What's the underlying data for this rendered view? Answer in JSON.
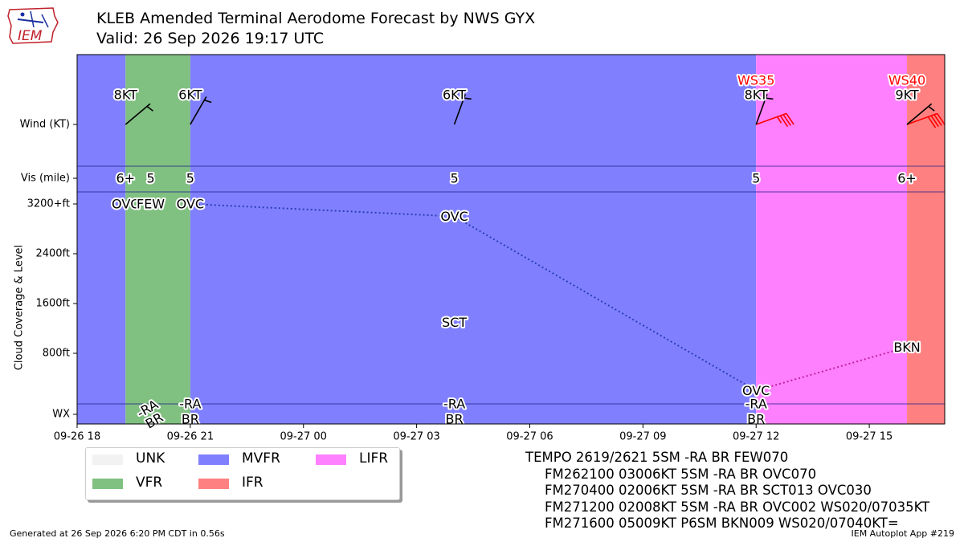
{
  "logo": {
    "text": "IEM",
    "icon": "iem-state-logo-icon"
  },
  "title": {
    "line1": "KLEB Amended Terminal Aerodome Forecast by NWS GYX",
    "line2": "Valid: 26 Sep 2026 19:17 UTC"
  },
  "colors": {
    "UNK": "#f2f2f2",
    "VFR": "#80c080",
    "MVFR": "#8080ff",
    "LIFR": "#ff80ff",
    "IFR": "#ff8080",
    "gust": "#ff0000"
  },
  "legend": [
    {
      "label": "UNK",
      "color": "#f2f2f2"
    },
    {
      "label": "MVFR",
      "color": "#8080ff"
    },
    {
      "label": "LIFR",
      "color": "#ff80ff"
    },
    {
      "label": "VFR",
      "color": "#80c080"
    },
    {
      "label": "IFR",
      "color": "#ff8080"
    }
  ],
  "taf_text": {
    "head": "TEMPO 2619/2621 5SM -RA BR FEW070",
    "lines": [
      "FM262100 03006KT 5SM -RA BR OVC070",
      "FM270400 02006KT 5SM -RA BR SCT013 OVC030",
      "FM271200 02008KT 5SM -RA BR OVC002 WS020/07035KT",
      "FM271600 05009KT P6SM BKN009 WS020/07040KT="
    ]
  },
  "footer": {
    "left": "Generated at 26 Sep 2026 6:20 PM CDT in 0.56s",
    "right": "IEM Autoplot App #219"
  },
  "chart_data": {
    "type": "timeline",
    "xlim": [
      "2026-09-26 18:00",
      "2026-09-27 17:00"
    ],
    "xticks": [
      "09-26 18",
      "09-26 21",
      "09-27 00",
      "09-27 03",
      "09-27 06",
      "09-27 09",
      "09-27 12",
      "09-27 15"
    ],
    "xtick_hours": [
      18,
      21,
      24,
      27,
      30,
      33,
      36,
      39
    ],
    "ylabel": "Cloud Coverage & Level",
    "row_labels": {
      "wind": "Wind (KT)",
      "vis": "Vis (mile)",
      "wx": "WX"
    },
    "cloud_ticks": [
      "3200+ft",
      "2400ft",
      "1600ft",
      "800ft"
    ],
    "cloud_tick_values": [
      3200,
      2400,
      1600,
      800
    ],
    "categories": [
      {
        "start": "2026-09-26 18:00",
        "end": "2026-09-26 19:17",
        "cat": "MVFR"
      },
      {
        "start": "2026-09-26 19:17",
        "end": "2026-09-26 21:00",
        "cat": "VFR"
      },
      {
        "start": "2026-09-26 21:00",
        "end": "2026-09-27 12:00",
        "cat": "MVFR"
      },
      {
        "start": "2026-09-27 12:00",
        "end": "2026-09-27 16:00",
        "cat": "LIFR"
      },
      {
        "start": "2026-09-27 16:00",
        "end": "2026-09-27 17:00",
        "cat": "IFR"
      }
    ],
    "winds": [
      {
        "time": "2026-09-26 19:17",
        "label": "8KT",
        "dir": 50,
        "knots": 8
      },
      {
        "time": "2026-09-26 21:00",
        "label": "6KT",
        "dir": 30,
        "knots": 6
      },
      {
        "time": "2026-09-27 04:00",
        "label": "6KT",
        "dir": 20,
        "knots": 6
      },
      {
        "time": "2026-09-27 12:00",
        "label": "8KT",
        "dir": 20,
        "knots": 8,
        "shear": "WS35",
        "shear_dir": 70,
        "shear_knots": 35
      },
      {
        "time": "2026-09-27 16:00",
        "label": "9KT",
        "dir": 50,
        "knots": 9,
        "shear": "WS40",
        "shear_dir": 70,
        "shear_knots": 40
      }
    ],
    "visibility": [
      {
        "time": "2026-09-26 19:17",
        "label": "6+"
      },
      {
        "time": "2026-09-26 19:57",
        "label": "5"
      },
      {
        "time": "2026-09-26 21:00",
        "label": "5"
      },
      {
        "time": "2026-09-27 04:00",
        "label": "5"
      },
      {
        "time": "2026-09-27 12:00",
        "label": "5"
      },
      {
        "time": "2026-09-27 16:00",
        "label": "6+"
      }
    ],
    "cloud_labels": [
      {
        "time": "2026-09-26 19:17",
        "level": 3200,
        "label": "OVC"
      },
      {
        "time": "2026-09-26 19:57",
        "level": 3200,
        "label": "FEW"
      },
      {
        "time": "2026-09-26 21:00",
        "level": 3200,
        "label": "OVC"
      },
      {
        "time": "2026-09-27 04:00",
        "level": 3000,
        "label": "OVC"
      },
      {
        "time": "2026-09-27 04:00",
        "level": 1300,
        "label": "SCT"
      },
      {
        "time": "2026-09-27 12:00",
        "level": 200,
        "label": "OVC"
      },
      {
        "time": "2026-09-27 16:00",
        "level": 900,
        "label": "BKN"
      }
    ],
    "cloud_lines": [
      {
        "x": [
          "2026-09-26 21:00",
          "2026-09-27 04:00",
          "2026-09-27 12:00"
        ],
        "y": [
          3200,
          3000,
          200
        ],
        "color": "#2b3fb0"
      },
      {
        "x": [
          "2026-09-27 12:00",
          "2026-09-27 16:00"
        ],
        "y": [
          200,
          900
        ],
        "color": "#c0209a"
      }
    ],
    "weather": [
      {
        "time": "2026-09-26 19:57",
        "lines": [
          "-RA",
          "BR"
        ],
        "rotated": true
      },
      {
        "time": "2026-09-26 21:00",
        "lines": [
          "-RA",
          "BR"
        ]
      },
      {
        "time": "2026-09-27 04:00",
        "lines": [
          "-RA",
          "BR"
        ]
      },
      {
        "time": "2026-09-27 12:00",
        "lines": [
          "-RA",
          "BR"
        ]
      }
    ]
  }
}
